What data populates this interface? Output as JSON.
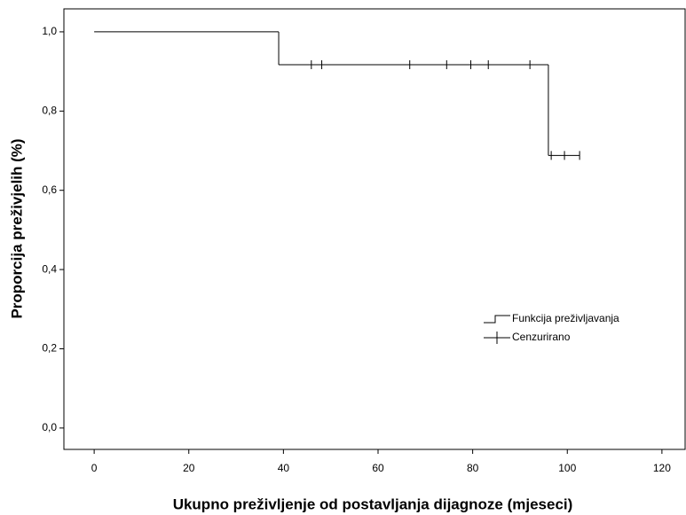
{
  "chart_data": {
    "type": "survival-step",
    "x_label": "Ukupno preživljenje od postavljanja dijagnoze (mjeseci)",
    "y_label": "Proporcija preživjelih (%)",
    "xlim": [
      -6.4,
      124.9
    ],
    "xticks": [
      0,
      20,
      40,
      60,
      80,
      100,
      120
    ],
    "ylim": [
      -0.054,
      1.058
    ],
    "yticks": [
      {
        "value": 0,
        "label": "0,0"
      },
      {
        "value": 0.2,
        "label": "0,2"
      },
      {
        "value": 0.4,
        "label": "0,4"
      },
      {
        "value": 0.6,
        "label": "0,6"
      },
      {
        "value": 0.8,
        "label": "0,8"
      },
      {
        "value": 1,
        "label": "1,0"
      }
    ],
    "series": [
      {
        "name": "Funkcija preživljavanja",
        "color": "#000000",
        "x": [
          0,
          39,
          96,
          102.6
        ],
        "values": [
          1,
          0.917,
          0.688,
          0.688
        ]
      },
      {
        "name": "Cenzurirano",
        "color": "#000000",
        "x": [
          45.9,
          48.1,
          66.7,
          74.5,
          79.6,
          83.3,
          92.1,
          96.6,
          99.4,
          102.6
        ],
        "values": [
          0.917,
          0.917,
          0.917,
          0.917,
          0.917,
          0.917,
          0.917,
          0.688,
          0.688,
          0.688
        ]
      }
    ]
  }
}
